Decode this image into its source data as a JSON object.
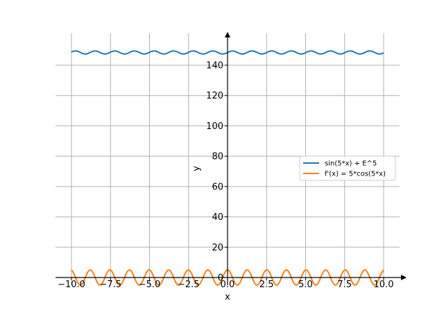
{
  "chart_data": {
    "type": "line",
    "xlabel": "x",
    "ylabel": "y",
    "xlim": [
      -11.0,
      11.5
    ],
    "ylim": [
      -14,
      160
    ],
    "x_ticks": [
      -10.0,
      -7.5,
      -5.0,
      -2.5,
      0.0,
      2.5,
      5.0,
      7.5,
      10.0
    ],
    "x_tick_labels": [
      "−10.0",
      "−7.5",
      "−5.0",
      "−2.5",
      "0.0",
      "2.5",
      "5.0",
      "7.5",
      "10.0"
    ],
    "y_ticks": [
      0,
      20,
      40,
      60,
      80,
      100,
      120,
      140
    ],
    "y_tick_labels": [
      "0",
      "20",
      "40",
      "60",
      "80",
      "100",
      "120",
      "140"
    ],
    "grid": true,
    "legend_position": "right",
    "series": [
      {
        "name": "sin(5*x) + E^5",
        "color": "#1f77b4",
        "formula": "sin(5x)+e^5",
        "x_range": [
          -10,
          10
        ]
      },
      {
        "name": "f'(x) = 5*cos(5*x)",
        "color": "#ff7f0e",
        "formula": "5cos(5x)",
        "x_range": [
          -10,
          10
        ]
      }
    ]
  }
}
